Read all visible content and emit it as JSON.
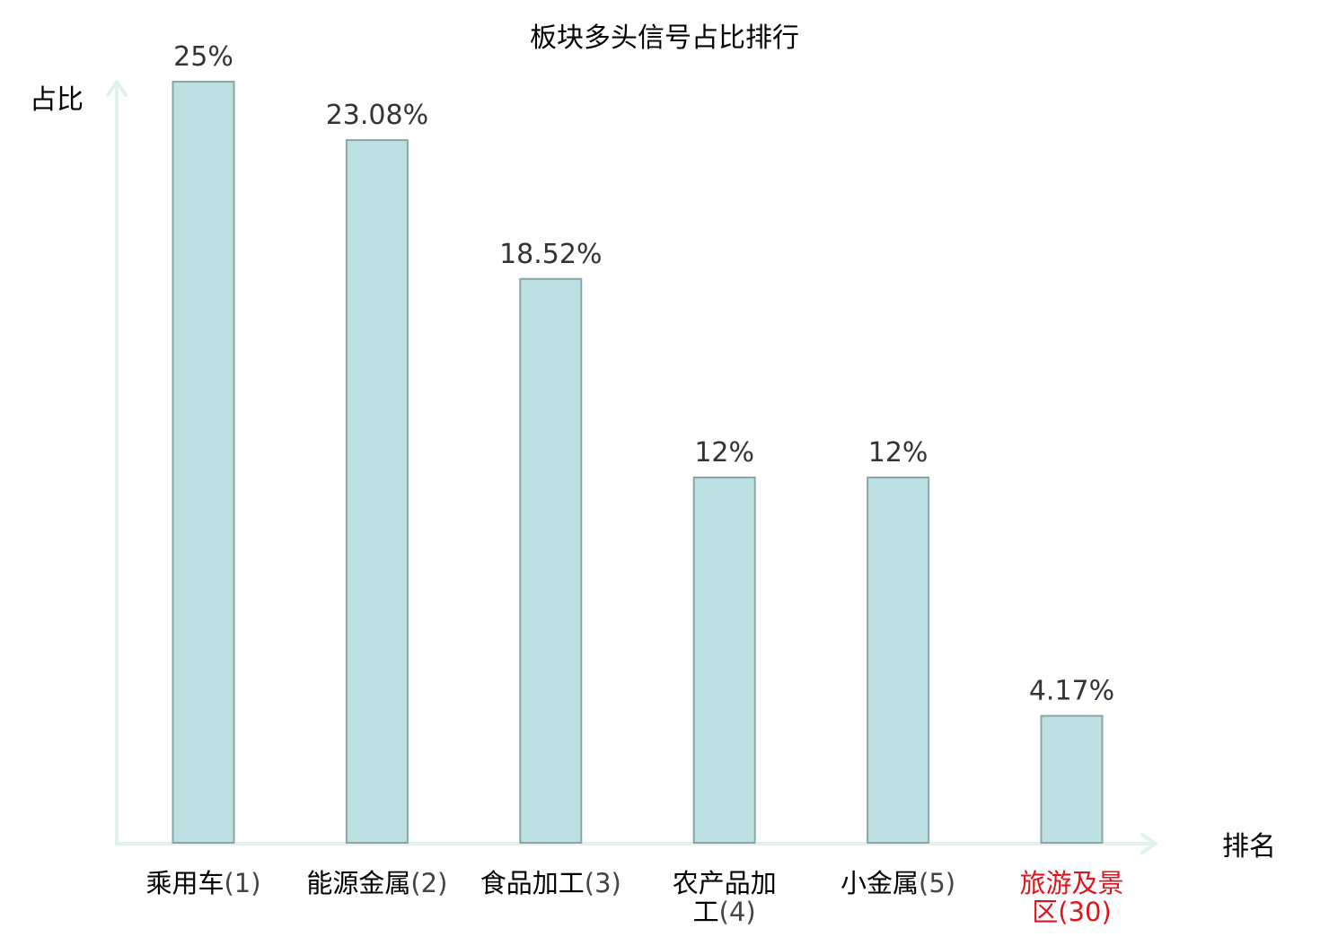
{
  "chart_data": {
    "type": "bar",
    "title": "板块多头信号占比排行",
    "ylabel": "占比",
    "xlabel": "排名",
    "categories": [
      {
        "name_lines": [
          "乘用车"
        ],
        "rank": "(1)",
        "highlight": false
      },
      {
        "name_lines": [
          "能源金属"
        ],
        "rank": "(2)",
        "highlight": false
      },
      {
        "name_lines": [
          "食品加工"
        ],
        "rank": "(3)",
        "highlight": false
      },
      {
        "name_lines": [
          "农产品加",
          "工"
        ],
        "rank": "(4)",
        "highlight": false
      },
      {
        "name_lines": [
          "小金属"
        ],
        "rank": "(5)",
        "highlight": false
      },
      {
        "name_lines": [
          "旅游及景",
          "区"
        ],
        "rank": "(30)",
        "highlight": true
      }
    ],
    "values": [
      25,
      23.08,
      18.52,
      12,
      12,
      4.17
    ],
    "value_labels": [
      "25%",
      "23.08%",
      "18.52%",
      "12%",
      "12%",
      "4.17%"
    ],
    "ylim": [
      0,
      25
    ],
    "grid": false,
    "legend": "none",
    "colors": {
      "bar_fill": "#bde0e3",
      "bar_stroke": "#8aa5a8",
      "axis": "#e0f2ef",
      "text": "#000000",
      "value_label": "#333333",
      "highlight": "#e0141e"
    }
  }
}
